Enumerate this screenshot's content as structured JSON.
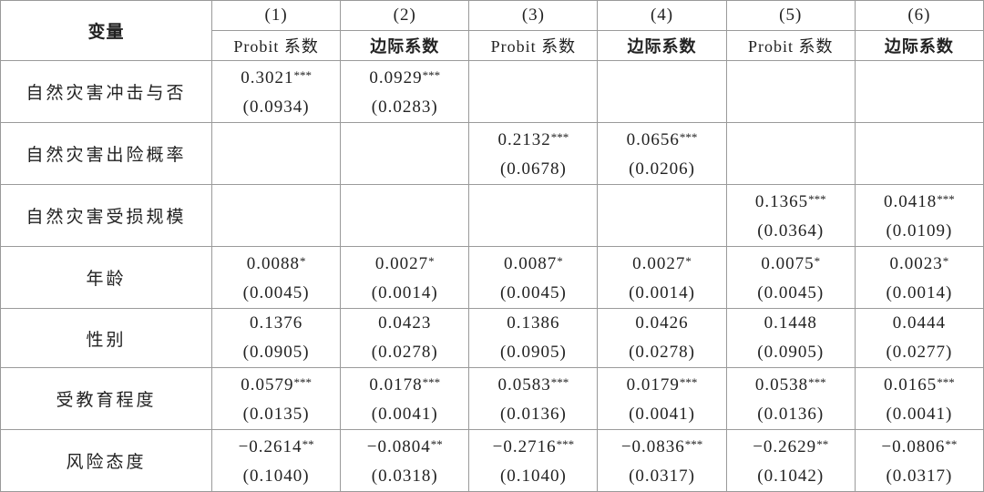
{
  "table": {
    "header": {
      "variable": "变量",
      "columns": [
        "(1)",
        "(2)",
        "(3)",
        "(4)",
        "(5)",
        "(6)"
      ],
      "subcolumns": [
        "Probit 系数",
        "边际系数",
        "Probit 系数",
        "边际系数",
        "Probit 系数",
        "边际系数"
      ]
    },
    "rows": [
      {
        "label": "自然灾害冲击与否",
        "cells": [
          {
            "coef": "0.3021",
            "stars": "***",
            "se": "(0.0934)"
          },
          {
            "coef": "0.0929",
            "stars": "***",
            "se": "(0.0283)"
          },
          null,
          null,
          null,
          null
        ]
      },
      {
        "label": "自然灾害出险概率",
        "cells": [
          null,
          null,
          {
            "coef": "0.2132",
            "stars": "***",
            "se": "(0.0678)"
          },
          {
            "coef": "0.0656",
            "stars": "***",
            "se": "(0.0206)"
          },
          null,
          null
        ]
      },
      {
        "label": "自然灾害受损规模",
        "cells": [
          null,
          null,
          null,
          null,
          {
            "coef": "0.1365",
            "stars": "***",
            "se": "(0.0364)"
          },
          {
            "coef": "0.0418",
            "stars": "***",
            "se": "(0.0109)"
          }
        ]
      },
      {
        "label": "年龄",
        "cells": [
          {
            "coef": "0.0088",
            "stars": "*",
            "se": "(0.0045)"
          },
          {
            "coef": "0.0027",
            "stars": "*",
            "se": "(0.0014)"
          },
          {
            "coef": "0.0087",
            "stars": "*",
            "se": "(0.0045)"
          },
          {
            "coef": "0.0027",
            "stars": "*",
            "se": "(0.0014)"
          },
          {
            "coef": "0.0075",
            "stars": "*",
            "se": "(0.0045)"
          },
          {
            "coef": "0.0023",
            "stars": "*",
            "se": "(0.0014)"
          }
        ]
      },
      {
        "label": "性别",
        "cells": [
          {
            "coef": "0.1376",
            "se": "(0.0905)"
          },
          {
            "coef": "0.0423",
            "se": "(0.0278)"
          },
          {
            "coef": "0.1386",
            "se": "(0.0905)"
          },
          {
            "coef": "0.0426",
            "se": "(0.0278)"
          },
          {
            "coef": "0.1448",
            "se": "(0.0905)"
          },
          {
            "coef": "0.0444",
            "se": "(0.0277)"
          }
        ]
      },
      {
        "label": "受教育程度",
        "cells": [
          {
            "coef": "0.0579",
            "stars": "***",
            "se": "(0.0135)"
          },
          {
            "coef": "0.0178",
            "stars": "***",
            "se": "(0.0041)"
          },
          {
            "coef": "0.0583",
            "stars": "***",
            "se": "(0.0136)"
          },
          {
            "coef": "0.0179",
            "stars": "***",
            "se": "(0.0041)"
          },
          {
            "coef": "0.0538",
            "stars": "***",
            "se": "(0.0136)"
          },
          {
            "coef": "0.0165",
            "stars": "***",
            "se": "(0.0041)"
          }
        ]
      },
      {
        "label": "风险态度",
        "cells": [
          {
            "coef": "−0.2614",
            "stars": "**",
            "se": "(0.1040)"
          },
          {
            "coef": "−0.0804",
            "stars": "**",
            "se": "(0.0318)"
          },
          {
            "coef": "−0.2716",
            "stars": "***",
            "se": "(0.1040)"
          },
          {
            "coef": "−0.0836",
            "stars": "***",
            "se": "(0.0317)"
          },
          {
            "coef": "−0.2629",
            "stars": "**",
            "se": "(0.1042)"
          },
          {
            "coef": "−0.0806",
            "stars": "**",
            "se": "(0.0317)"
          }
        ]
      }
    ]
  }
}
